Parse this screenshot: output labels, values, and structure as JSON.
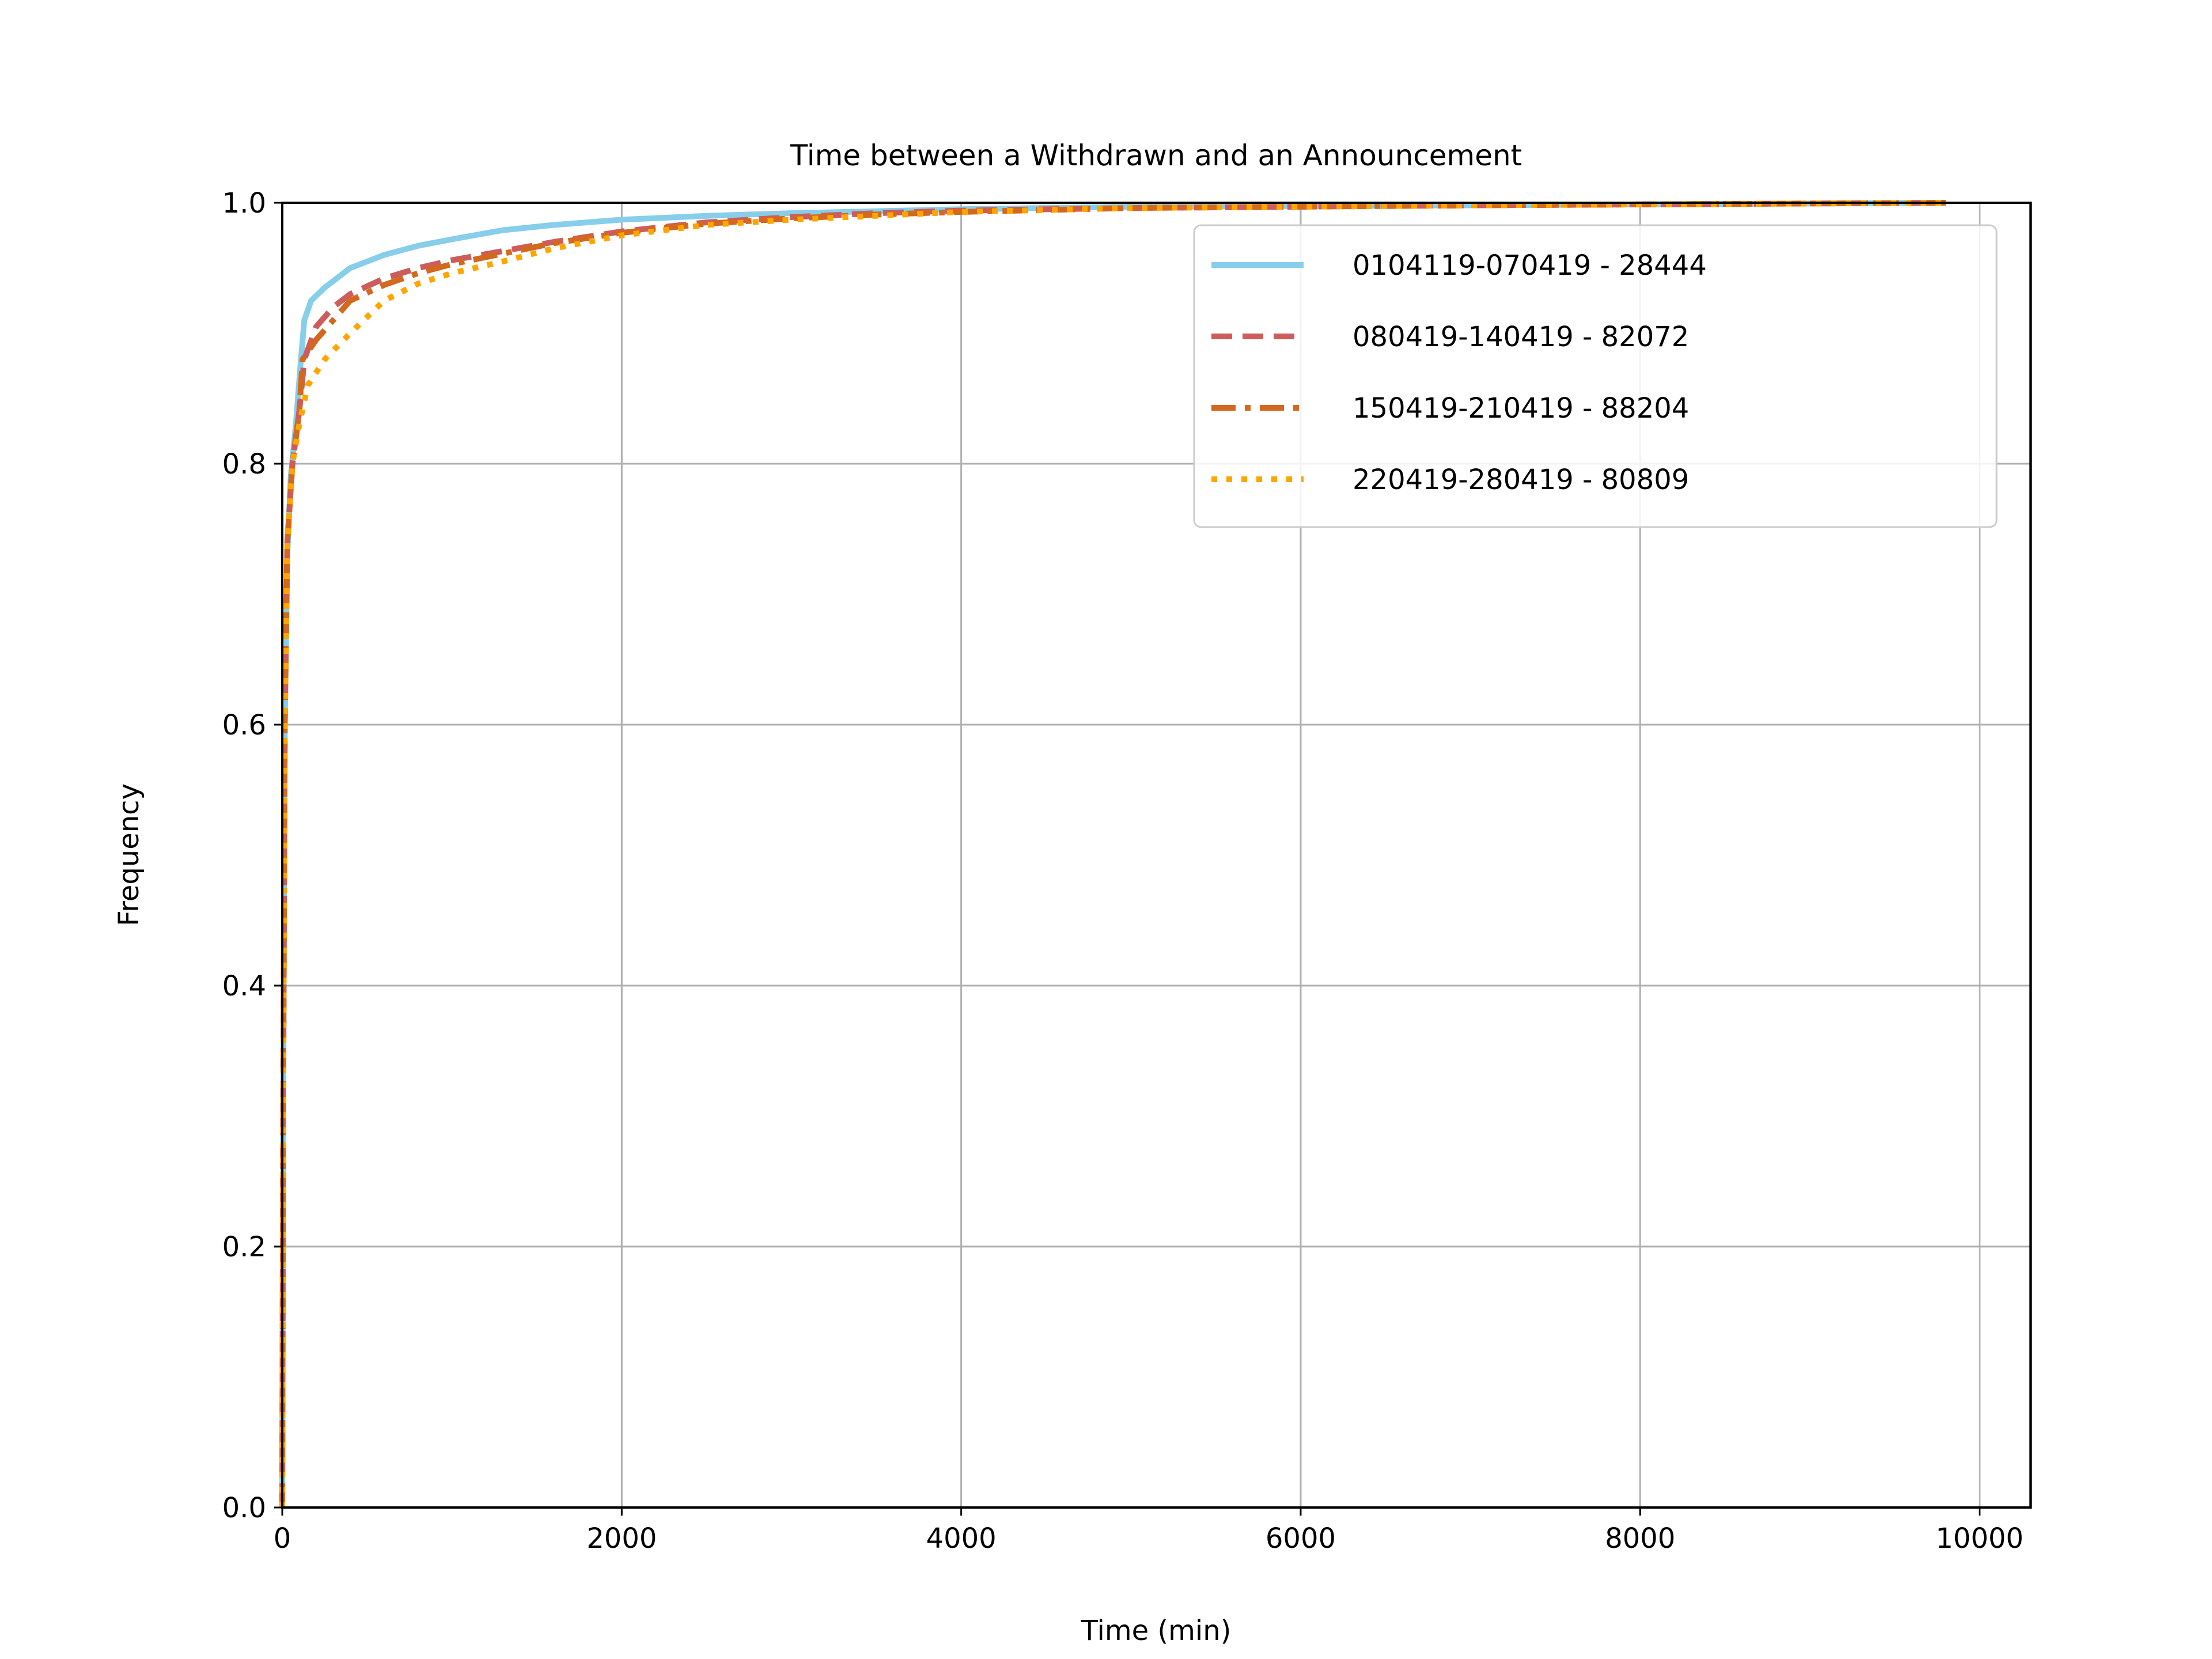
{
  "chart_data": {
    "type": "line",
    "title": "Time between a Withdrawn and an Announcement",
    "xlabel": "Time (min)",
    "ylabel": "Frequency",
    "xlim": [
      0,
      10300
    ],
    "ylim": [
      0,
      1.0
    ],
    "xticks": [
      0,
      2000,
      4000,
      6000,
      8000,
      10000
    ],
    "yticks": [
      0.0,
      0.2,
      0.4,
      0.6,
      0.8,
      1.0
    ],
    "xtick_labels": [
      "0",
      "2000",
      "4000",
      "6000",
      "8000",
      "10000"
    ],
    "ytick_labels": [
      "0.0",
      "0.2",
      "0.4",
      "0.6",
      "0.8",
      "1.0"
    ],
    "grid": true,
    "legend_position": "top-right",
    "series": [
      {
        "name": "0104119-070419 - 28444",
        "color": "#87ceeb",
        "style": "solid",
        "points": [
          [
            0,
            0.0
          ],
          [
            5,
            0.3
          ],
          [
            15,
            0.6
          ],
          [
            30,
            0.73
          ],
          [
            50,
            0.79
          ],
          [
            80,
            0.83
          ],
          [
            110,
            0.88
          ],
          [
            130,
            0.91
          ],
          [
            170,
            0.925
          ],
          [
            250,
            0.935
          ],
          [
            400,
            0.95
          ],
          [
            600,
            0.96
          ],
          [
            800,
            0.967
          ],
          [
            1000,
            0.972
          ],
          [
            1300,
            0.979
          ],
          [
            1600,
            0.983
          ],
          [
            2000,
            0.987
          ],
          [
            2500,
            0.99
          ],
          [
            3000,
            0.992
          ],
          [
            4000,
            0.995
          ],
          [
            5000,
            0.997
          ],
          [
            7000,
            0.998
          ],
          [
            9800,
            1.0
          ]
        ]
      },
      {
        "name": "080419-140419 - 82072",
        "color": "#cd5c5c",
        "style": "dashed",
        "points": [
          [
            0,
            0.0
          ],
          [
            5,
            0.3
          ],
          [
            15,
            0.6
          ],
          [
            30,
            0.74
          ],
          [
            60,
            0.8
          ],
          [
            100,
            0.84
          ],
          [
            130,
            0.88
          ],
          [
            200,
            0.905
          ],
          [
            300,
            0.92
          ],
          [
            400,
            0.93
          ],
          [
            600,
            0.942
          ],
          [
            800,
            0.95
          ],
          [
            1000,
            0.956
          ],
          [
            1300,
            0.963
          ],
          [
            1600,
            0.97
          ],
          [
            2000,
            0.978
          ],
          [
            2500,
            0.985
          ],
          [
            3000,
            0.989
          ],
          [
            3500,
            0.992
          ],
          [
            4000,
            0.994
          ],
          [
            5000,
            0.996
          ],
          [
            7000,
            0.998
          ],
          [
            9800,
            1.0
          ]
        ]
      },
      {
        "name": "150419-210419 - 88204",
        "color": "#d2691e",
        "style": "dashdot",
        "points": [
          [
            0,
            0.0
          ],
          [
            5,
            0.3
          ],
          [
            15,
            0.6
          ],
          [
            30,
            0.74
          ],
          [
            60,
            0.8
          ],
          [
            100,
            0.84
          ],
          [
            120,
            0.88
          ],
          [
            200,
            0.895
          ],
          [
            300,
            0.91
          ],
          [
            400,
            0.925
          ],
          [
            600,
            0.937
          ],
          [
            800,
            0.946
          ],
          [
            1000,
            0.953
          ],
          [
            1300,
            0.961
          ],
          [
            1600,
            0.969
          ],
          [
            2000,
            0.977
          ],
          [
            2500,
            0.984
          ],
          [
            3000,
            0.988
          ],
          [
            3500,
            0.991
          ],
          [
            4000,
            0.993
          ],
          [
            5000,
            0.996
          ],
          [
            7000,
            0.998
          ],
          [
            9800,
            1.0
          ]
        ]
      },
      {
        "name": "220419-280419 - 80809",
        "color": "#ffa500",
        "style": "dotted",
        "points": [
          [
            0,
            0.0
          ],
          [
            5,
            0.3
          ],
          [
            15,
            0.6
          ],
          [
            30,
            0.74
          ],
          [
            60,
            0.8
          ],
          [
            100,
            0.83
          ],
          [
            150,
            0.86
          ],
          [
            250,
            0.88
          ],
          [
            400,
            0.9
          ],
          [
            600,
            0.925
          ],
          [
            800,
            0.938
          ],
          [
            1000,
            0.946
          ],
          [
            1300,
            0.955
          ],
          [
            1600,
            0.965
          ],
          [
            2000,
            0.975
          ],
          [
            2500,
            0.983
          ],
          [
            3000,
            0.987
          ],
          [
            3500,
            0.99
          ],
          [
            4000,
            0.993
          ],
          [
            5000,
            0.996
          ],
          [
            7000,
            0.998
          ],
          [
            9800,
            1.0
          ]
        ]
      }
    ]
  }
}
